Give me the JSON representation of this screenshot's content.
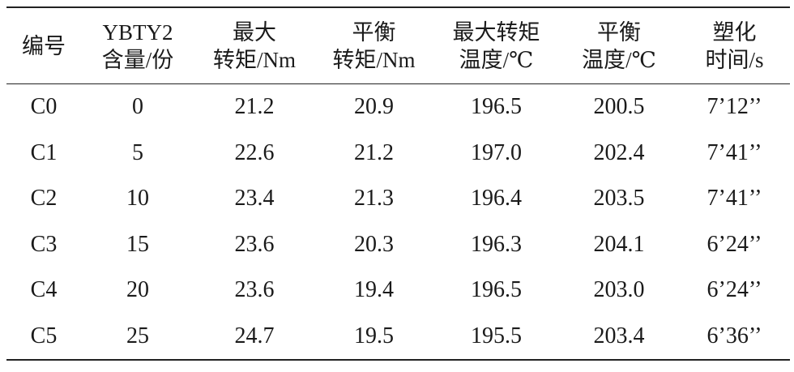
{
  "table": {
    "header": [
      [
        "编号"
      ],
      [
        "YBTY2",
        "含量/份"
      ],
      [
        "最大",
        "转矩/Nm"
      ],
      [
        "平衡",
        "转矩/Nm"
      ],
      [
        "最大转矩",
        "温度/℃"
      ],
      [
        "平衡",
        "温度/℃"
      ],
      [
        "塑化",
        "时间/s"
      ]
    ],
    "rows": [
      [
        "C0",
        "0",
        "21.2",
        "20.9",
        "196.5",
        "200.5",
        "7’12’’"
      ],
      [
        "C1",
        "5",
        "22.6",
        "21.2",
        "197.0",
        "202.4",
        "7’41’’"
      ],
      [
        "C2",
        "10",
        "23.4",
        "21.3",
        "196.4",
        "203.5",
        "7’41’’"
      ],
      [
        "C3",
        "15",
        "23.6",
        "20.3",
        "196.3",
        "204.1",
        "6’24’’"
      ],
      [
        "C4",
        "20",
        "23.6",
        "19.4",
        "196.5",
        "203.0",
        "6’24’’"
      ],
      [
        "C5",
        "25",
        "24.7",
        "19.5",
        "195.5",
        "203.4",
        "6’36’’"
      ]
    ]
  }
}
